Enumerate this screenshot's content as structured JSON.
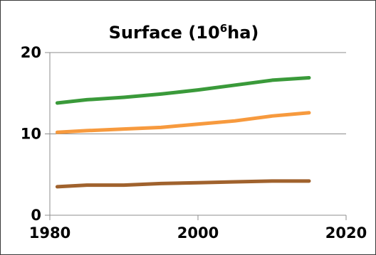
{
  "chart_data": {
    "type": "line",
    "title_main": "Surface (10",
    "title_sup": "6",
    "title_end": "ha)",
    "xlabel": "",
    "ylabel": "",
    "xlim": [
      1980,
      2020
    ],
    "ylim": [
      0,
      20
    ],
    "x_ticks": [
      "1980",
      "2000",
      "2020"
    ],
    "y_ticks": [
      "0",
      "10",
      "20"
    ],
    "grid": true,
    "legend": "none",
    "series": [
      {
        "color": "#3a9a3a",
        "x": [
          1981,
          1985,
          1990,
          1995,
          2000,
          2005,
          2010,
          2015
        ],
        "values": [
          13.8,
          14.2,
          14.5,
          14.9,
          15.4,
          16.0,
          16.6,
          16.9
        ]
      },
      {
        "color": "#f79a3e",
        "x": [
          1981,
          1985,
          1990,
          1995,
          2000,
          2005,
          2010,
          2015
        ],
        "values": [
          10.2,
          10.4,
          10.6,
          10.8,
          11.2,
          11.6,
          12.2,
          12.6
        ]
      },
      {
        "color": "#a0622d",
        "x": [
          1981,
          1985,
          1990,
          1995,
          2000,
          2005,
          2010,
          2015
        ],
        "values": [
          3.5,
          3.7,
          3.7,
          3.9,
          4.0,
          4.1,
          4.2,
          4.2
        ]
      }
    ]
  }
}
